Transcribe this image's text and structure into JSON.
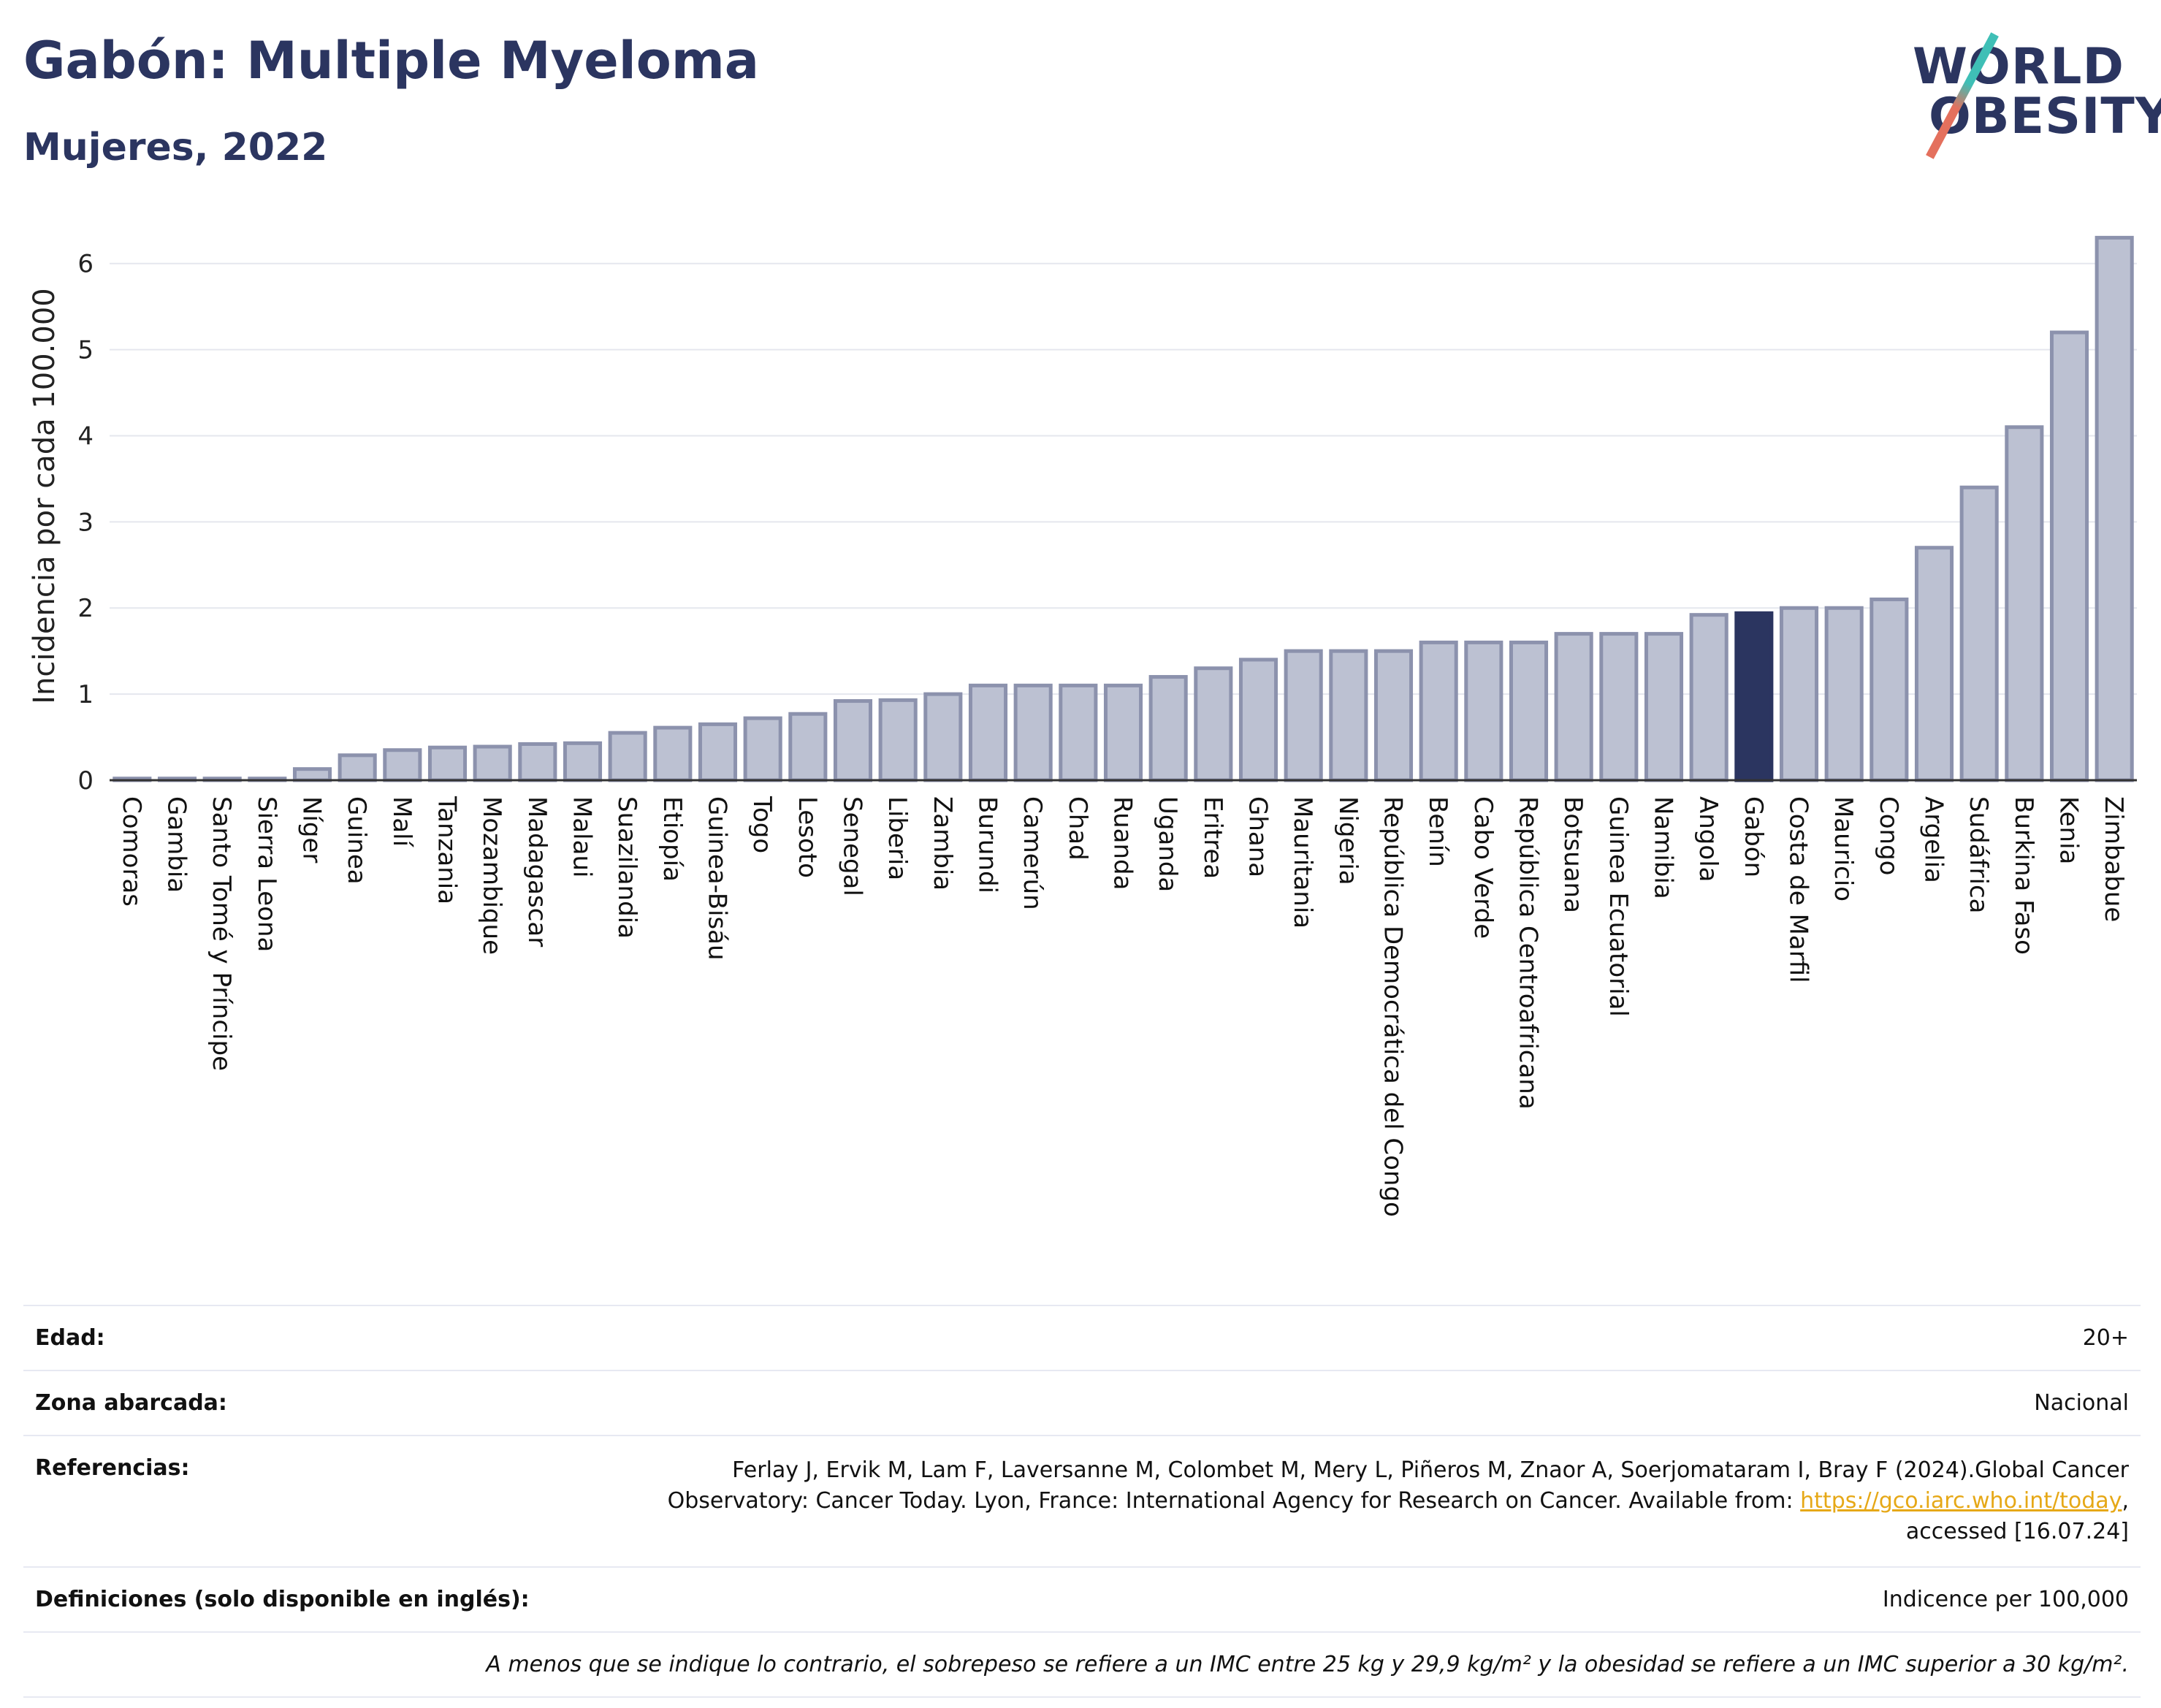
{
  "header": {
    "title": "Gabón: Multiple Myeloma",
    "subtitle": "Mujeres, 2022"
  },
  "logo": {
    "line1": "WORLD",
    "line2": "OBESITY"
  },
  "colors": {
    "bar": "#bcc1d2",
    "bar_stroke": "#8c92ad",
    "highlight": "#2b3560",
    "grid": "#e5e7ee",
    "title": "#2b3560"
  },
  "chart_data": {
    "type": "bar",
    "ylabel": "Incidencia por cada 100.000",
    "xlabel": "",
    "ylim": [
      0,
      6.6
    ],
    "yticks": [
      0,
      1,
      2,
      3,
      4,
      5,
      6
    ],
    "grid": true,
    "highlight": "Gabón",
    "categories": [
      "Comoras",
      "Gambia",
      "Santo Tomé y Príncipe",
      "Sierra Leona",
      "Níger",
      "Guinea",
      "Malí",
      "Tanzania",
      "Mozambique",
      "Madagascar",
      "Malaui",
      "Suazilandia",
      "Etiopía",
      "Guinea-Bisáu",
      "Togo",
      "Lesoto",
      "Senegal",
      "Liberia",
      "Zambia",
      "Burundi",
      "Camerún",
      "Chad",
      "Ruanda",
      "Uganda",
      "Eritrea",
      "Ghana",
      "Mauritania",
      "Nigeria",
      "República Democrática del Congo",
      "Benín",
      "Cabo Verde",
      "República Centroafricana",
      "Botsuana",
      "Guinea Ecuatorial",
      "Namibia",
      "Angola",
      "Gabón",
      "Costa de Marfil",
      "Mauricio",
      "Congo",
      "Argelia",
      "Sudáfrica",
      "Burkina Faso",
      "Kenia",
      "Zimbabue"
    ],
    "values": [
      0.02,
      0.02,
      0.02,
      0.02,
      0.13,
      0.29,
      0.35,
      0.38,
      0.39,
      0.42,
      0.43,
      0.55,
      0.61,
      0.65,
      0.72,
      0.77,
      0.92,
      0.93,
      1.0,
      1.1,
      1.1,
      1.1,
      1.1,
      1.2,
      1.3,
      1.4,
      1.5,
      1.5,
      1.5,
      1.6,
      1.6,
      1.6,
      1.7,
      1.7,
      1.7,
      1.92,
      1.94,
      2.0,
      2.0,
      2.1,
      2.7,
      3.4,
      4.1,
      5.2,
      6.3
    ]
  },
  "meta": {
    "age_label": "Edad:",
    "age_value": "20+",
    "area_label": "Zona abarcada:",
    "area_value": "Nacional",
    "refs_label": "Referencias:",
    "refs_text": "Ferlay J, Ervik M, Lam F, Laversanne M, Colombet M, Mery L, Piñeros M, Znaor A, Soerjomataram I, Bray F (2024).Global Cancer Observatory: Cancer Today. Lyon, France: International Agency for Research on Cancer. Available from: ",
    "refs_link": "https://gco.iarc.who.int/today",
    "refs_tail": ", accessed [16.07.24]",
    "defs_label": "Definiciones (solo disponible en inglés):",
    "defs_value": "Indicence per 100,000",
    "note": "A menos que se indique lo contrario, el sobrepeso se refiere a un IMC entre 25 kg y 29,9 kg/m² y la obesidad se refiere a un IMC superior a 30 kg/m²."
  }
}
